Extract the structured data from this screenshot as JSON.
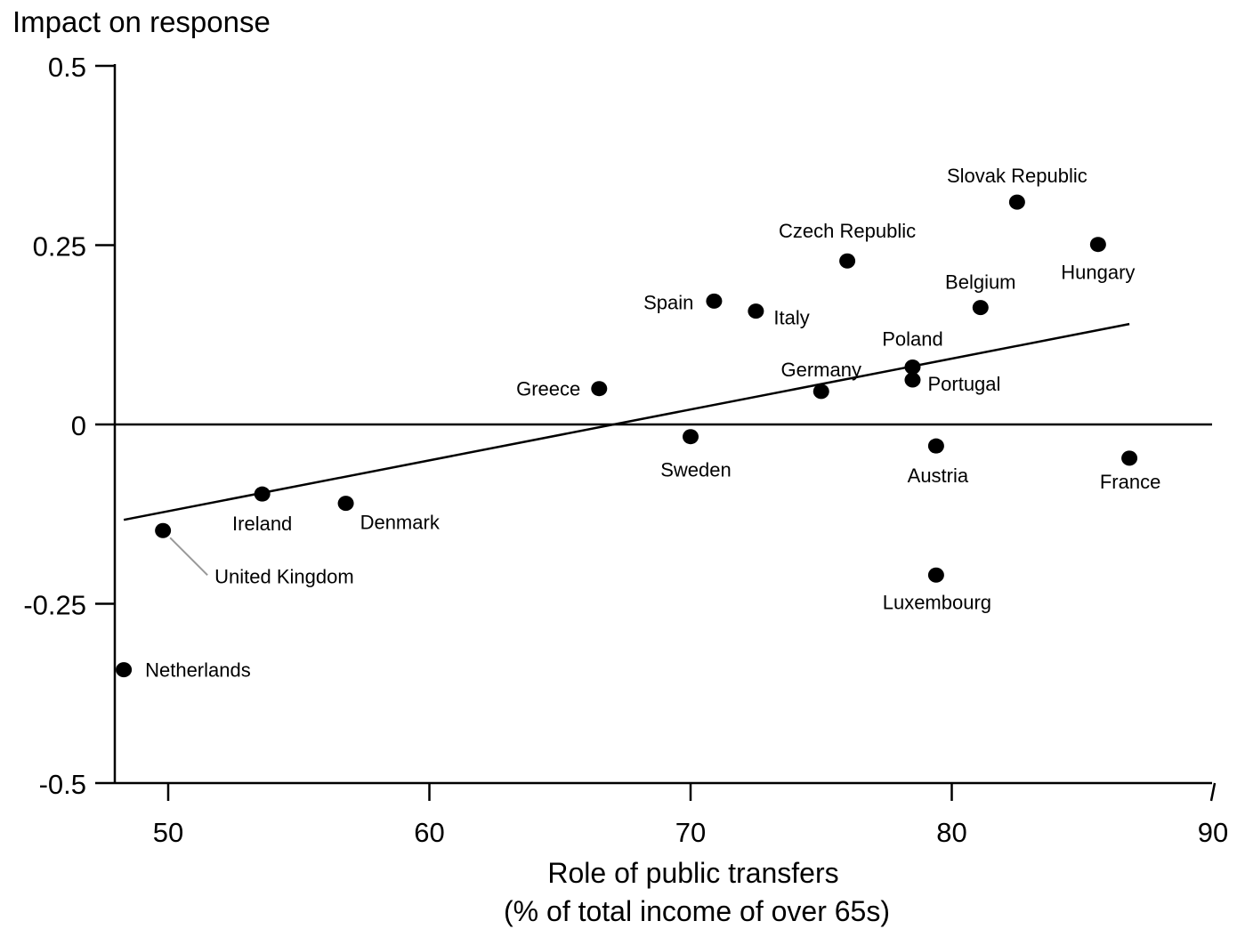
{
  "chart_data": {
    "type": "scatter",
    "ylabel": "Impact on response",
    "xlabel_lines": [
      "Role  of public transfers",
      "(% of total income of over 65s)"
    ],
    "xlim": [
      48,
      90
    ],
    "ylim": [
      -0.5,
      0.5
    ],
    "x_ticks": [
      50,
      60,
      70,
      80,
      90
    ],
    "x_tick_labels": [
      "50",
      "60",
      "70",
      "80",
      "90"
    ],
    "y_ticks": [
      0.5,
      0.25,
      0,
      -0.25,
      -0.5
    ],
    "y_tick_labels": [
      "0.5",
      "0.25",
      "0",
      "-0.25",
      "-0.5"
    ],
    "grid": false,
    "zero_line": 0,
    "fit_line": {
      "x": [
        48.3,
        86.8
      ],
      "y": [
        -0.133,
        0.14
      ]
    },
    "points": [
      {
        "label": "Netherlands",
        "x": 48.3,
        "y": -0.342
      },
      {
        "label": "United Kingdom",
        "x": 49.8,
        "y": -0.148
      },
      {
        "label": "Ireland",
        "x": 53.6,
        "y": -0.097
      },
      {
        "label": "Denmark",
        "x": 56.8,
        "y": -0.11
      },
      {
        "label": "Greece",
        "x": 66.5,
        "y": 0.05
      },
      {
        "label": "Sweden",
        "x": 70.0,
        "y": -0.017
      },
      {
        "label": "Spain",
        "x": 70.9,
        "y": 0.172
      },
      {
        "label": "Italy",
        "x": 72.5,
        "y": 0.158
      },
      {
        "label": "Germany",
        "x": 75.0,
        "y": 0.046
      },
      {
        "label": "Czech Republic",
        "x": 76.0,
        "y": 0.228
      },
      {
        "label": "Poland",
        "x": 78.5,
        "y": 0.08
      },
      {
        "label": "Portugal",
        "x": 78.5,
        "y": 0.062
      },
      {
        "label": "Austria",
        "x": 79.4,
        "y": -0.03
      },
      {
        "label": "Luxembourg",
        "x": 79.4,
        "y": -0.21
      },
      {
        "label": "Belgium",
        "x": 81.1,
        "y": 0.163
      },
      {
        "label": "Slovak Republic",
        "x": 82.5,
        "y": 0.31
      },
      {
        "label": "Hungary",
        "x": 85.6,
        "y": 0.251
      },
      {
        "label": "France",
        "x": 86.8,
        "y": -0.047
      }
    ]
  }
}
